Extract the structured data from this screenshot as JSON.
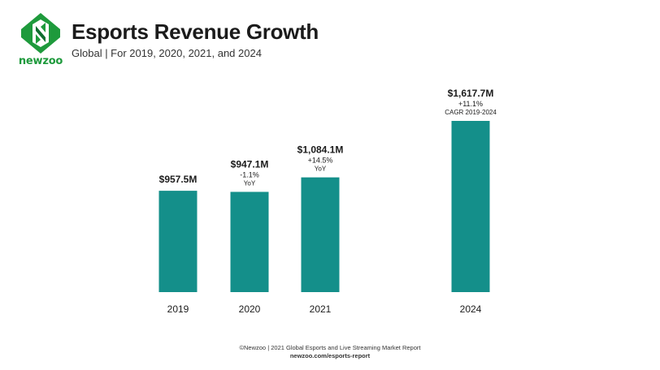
{
  "header": {
    "brand": "newzoo",
    "title": "Esports Revenue Growth",
    "subtitle": "Global | For 2019, 2020, 2021, and 2024"
  },
  "footer": {
    "source": "©Newzoo | 2021 Global Esports and Live Streaming Market Report",
    "url": "newzoo.com/esports-report"
  },
  "colors": {
    "bar": "#148f8a",
    "brand_green": "#1e9a3c",
    "brand_dark": "#0f6d2f"
  },
  "chart_data": {
    "type": "bar",
    "title": "Esports Revenue Growth",
    "subtitle": "Global | For 2019, 2020, 2021, and 2024",
    "xlabel": "",
    "ylabel": "",
    "categories": [
      "2019",
      "2020",
      "2021",
      "2024"
    ],
    "values": [
      957.5,
      947.1,
      1084.1,
      1617.7
    ],
    "unit": "$M",
    "ylim": [
      0,
      1617.7
    ],
    "grid": false,
    "data_labels": [
      "$957.5M",
      "$947.1M",
      "$1,084.1M",
      "$1,617.7M"
    ],
    "annotations": [
      [],
      [
        "-1.1%",
        "YoY"
      ],
      [
        "+14.5%",
        "YoY"
      ],
      [
        "+11.1%",
        "CAGR 2019-2024"
      ]
    ]
  }
}
